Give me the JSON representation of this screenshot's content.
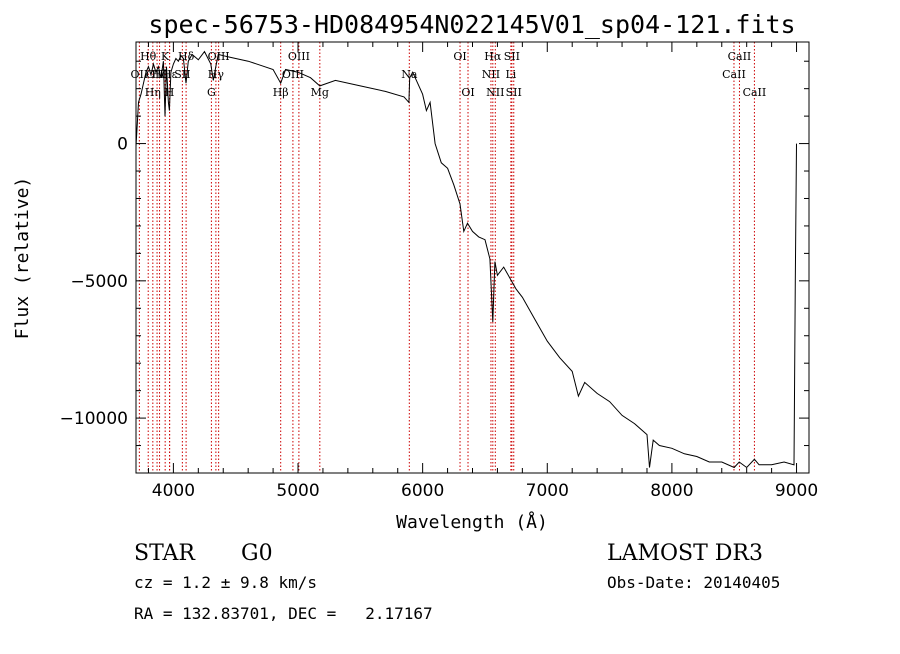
{
  "chart_data": {
    "type": "line",
    "title": "spec-56753-HD084954N022145V01_sp04-121.fits",
    "xlabel": "Wavelength (Å)",
    "ylabel": "Flux (relative)",
    "xlim": [
      3700,
      9100
    ],
    "ylim": [
      -12000,
      3700
    ],
    "xticks": [
      4000,
      5000,
      6000,
      7000,
      8000,
      9000
    ],
    "xtick_labels": [
      "4000",
      "5000",
      "6000",
      "7000",
      "8000",
      "9000"
    ],
    "yticks": [
      0,
      -5000,
      -10000
    ],
    "ytick_labels": [
      "0",
      "−5000",
      "−10000"
    ],
    "series": [
      {
        "name": "flux",
        "x": [
          3700,
          3720,
          3740,
          3760,
          3780,
          3800,
          3820,
          3840,
          3860,
          3880,
          3900,
          3920,
          3933,
          3945,
          3960,
          3968,
          3980,
          4000,
          4020,
          4040,
          4060,
          4080,
          4101,
          4120,
          4150,
          4200,
          4250,
          4300,
          4320,
          4340,
          4360,
          4400,
          4450,
          4500,
          4600,
          4700,
          4800,
          4861,
          4900,
          5000,
          5100,
          5175,
          5300,
          5500,
          5700,
          5850,
          5890,
          5896,
          5920,
          5950,
          6000,
          6030,
          6060,
          6100,
          6150,
          6200,
          6250,
          6300,
          6330,
          6360,
          6400,
          6450,
          6500,
          6540,
          6563,
          6580,
          6600,
          6650,
          6700,
          6750,
          6800,
          6900,
          7000,
          7100,
          7200,
          7250,
          7300,
          7400,
          7500,
          7600,
          7700,
          7800,
          7820,
          7850,
          7900,
          8000,
          8100,
          8200,
          8300,
          8400,
          8500,
          8540,
          8600,
          8662,
          8700,
          8800,
          8900,
          8980,
          8990,
          9000
        ],
        "y": [
          -100,
          1500,
          1800,
          2200,
          2600,
          2800,
          2500,
          2900,
          2600,
          2800,
          2400,
          3000,
          1000,
          2800,
          1500,
          1200,
          2600,
          2900,
          3100,
          3000,
          3200,
          3100,
          2200,
          3000,
          3250,
          3050,
          3350,
          2900,
          2300,
          2800,
          3250,
          3200,
          3150,
          3100,
          3000,
          2850,
          2700,
          2200,
          2700,
          2600,
          2400,
          2100,
          2300,
          2100,
          1900,
          1700,
          1500,
          2400,
          2600,
          2300,
          1800,
          1200,
          1500,
          0,
          -700,
          -900,
          -1500,
          -2200,
          -3200,
          -2900,
          -3200,
          -3400,
          -3500,
          -4200,
          -6500,
          -4300,
          -4800,
          -4500,
          -4900,
          -5300,
          -5600,
          -6400,
          -7200,
          -7800,
          -8300,
          -9200,
          -8700,
          -9100,
          -9400,
          -9900,
          -10200,
          -10600,
          -11800,
          -10800,
          -11000,
          -11100,
          -11300,
          -11400,
          -11600,
          -11600,
          -11800,
          -11600,
          -11800,
          -11500,
          -11700,
          -11700,
          -11600,
          -11700,
          -5000,
          0
        ]
      }
    ],
    "lines": [
      {
        "name": "OII",
        "wl": 3727,
        "row": 2
      },
      {
        "name": "Hθ",
        "wl": 3798,
        "row": 1
      },
      {
        "name": "Hη",
        "wl": 3835,
        "row": 3
      },
      {
        "name": "OIII",
        "wl": 3869,
        "row": 2
      },
      {
        "name": "Hζ",
        "wl": 3889,
        "row": 2
      },
      {
        "name": "K",
        "wl": 3934,
        "row": 1
      },
      {
        "name": "H",
        "wl": 3969,
        "row": 3
      },
      {
        "name": "Hε",
        "wl": 3970,
        "row": 2
      },
      {
        "name": "SII",
        "wl": 4072,
        "row": 2
      },
      {
        "name": "Hδ",
        "wl": 4102,
        "row": 1
      },
      {
        "name": "G",
        "wl": 4305,
        "row": 3
      },
      {
        "name": "Hγ",
        "wl": 4341,
        "row": 2
      },
      {
        "name": "OIII",
        "wl": 4363,
        "row": 1
      },
      {
        "name": "Hβ",
        "wl": 4861,
        "row": 3
      },
      {
        "name": "OIII",
        "wl": 4959,
        "row": 2
      },
      {
        "name": "OIII",
        "wl": 5007,
        "row": 1
      },
      {
        "name": "Mg",
        "wl": 5175,
        "row": 3
      },
      {
        "name": "Na",
        "wl": 5893,
        "row": 2
      },
      {
        "name": "OI",
        "wl": 6300,
        "row": 1
      },
      {
        "name": "OI",
        "wl": 6364,
        "row": 3
      },
      {
        "name": "NII",
        "wl": 6548,
        "row": 2
      },
      {
        "name": "Hα",
        "wl": 6563,
        "row": 1
      },
      {
        "name": "NII",
        "wl": 6583,
        "row": 3
      },
      {
        "name": "Li",
        "wl": 6708,
        "row": 2
      },
      {
        "name": "SII",
        "wl": 6716,
        "row": 1
      },
      {
        "name": "SII",
        "wl": 6731,
        "row": 3
      },
      {
        "name": "CaII",
        "wl": 8498,
        "row": 2
      },
      {
        "name": "CaII",
        "wl": 8542,
        "row": 1
      },
      {
        "name": "CaII",
        "wl": 8662,
        "row": 3
      }
    ]
  },
  "info": {
    "classification": "STAR",
    "subclass": "G0",
    "redshift": "cz = 1.2 ± 9.8 km/s",
    "coords": "RA = 132.83701, DEC =   2.17167",
    "survey": "LAMOST DR3",
    "obs_date": "Obs-Date: 20140405"
  },
  "colors": {
    "spectrum": "#000000",
    "line_marker": "#cc0000",
    "frame": "#000000"
  }
}
